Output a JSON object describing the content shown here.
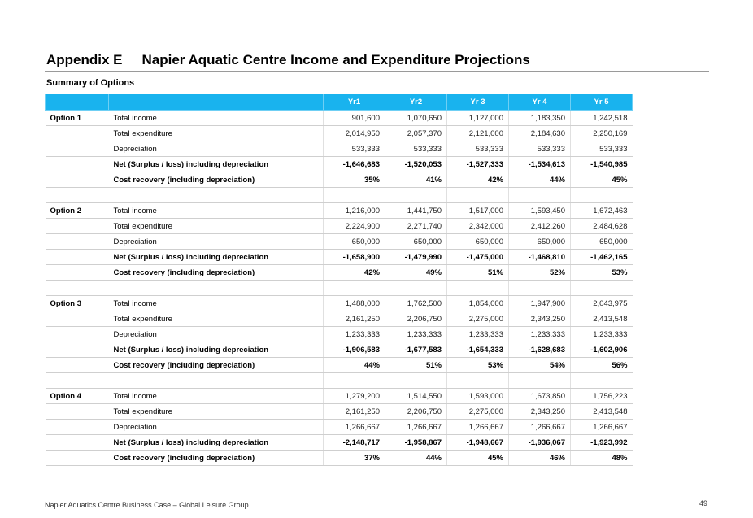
{
  "header": {
    "appendix": "Appendix E",
    "title": "Napier Aquatic Centre Income and Expenditure Projections",
    "subtitle": "Summary of Options"
  },
  "table": {
    "columns": [
      "Yr1",
      "Yr2",
      "Yr 3",
      "Yr 4",
      "Yr 5"
    ],
    "options": [
      {
        "option": "Option 1",
        "rows": [
          {
            "label": "Total income",
            "values": [
              "901,600",
              "1,070,650",
              "1,127,000",
              "1,183,350",
              "1,242,518"
            ]
          },
          {
            "label": "Total expenditure",
            "values": [
              "2,014,950",
              "2,057,370",
              "2,121,000",
              "2,184,630",
              "2,250,169"
            ]
          },
          {
            "label": "Depreciation",
            "values": [
              "533,333",
              "533,333",
              "533,333",
              "533,333",
              "533,333"
            ]
          },
          {
            "label": "Net (Surplus / loss) including depreciation",
            "values": [
              "-1,646,683",
              "-1,520,053",
              "-1,527,333",
              "-1,534,613",
              "-1,540,985"
            ]
          },
          {
            "label": "Cost recovery (including depreciation)",
            "values": [
              "35%",
              "41%",
              "42%",
              "44%",
              "45%"
            ]
          }
        ]
      },
      {
        "option": "Option 2",
        "rows": [
          {
            "label": "Total income",
            "values": [
              "1,216,000",
              "1,441,750",
              "1,517,000",
              "1,593,450",
              "1,672,463"
            ]
          },
          {
            "label": "Total expenditure",
            "values": [
              "2,224,900",
              "2,271,740",
              "2,342,000",
              "2,412,260",
              "2,484,628"
            ]
          },
          {
            "label": "Depreciation",
            "values": [
              "650,000",
              "650,000",
              "650,000",
              "650,000",
              "650,000"
            ]
          },
          {
            "label": "Net (Surplus / loss) including depreciation",
            "values": [
              "-1,658,900",
              "-1,479,990",
              "-1,475,000",
              "-1,468,810",
              "-1,462,165"
            ]
          },
          {
            "label": "Cost recovery (including depreciation)",
            "values": [
              "42%",
              "49%",
              "51%",
              "52%",
              "53%"
            ]
          }
        ]
      },
      {
        "option": "Option 3",
        "rows": [
          {
            "label": "Total income",
            "values": [
              "1,488,000",
              "1,762,500",
              "1,854,000",
              "1,947,900",
              "2,043,975"
            ]
          },
          {
            "label": "Total expenditure",
            "values": [
              "2,161,250",
              "2,206,750",
              "2,275,000",
              "2,343,250",
              "2,413,548"
            ]
          },
          {
            "label": "Depreciation",
            "values": [
              "1,233,333",
              "1,233,333",
              "1,233,333",
              "1,233,333",
              "1,233,333"
            ]
          },
          {
            "label": "Net (Surplus / loss) including depreciation",
            "values": [
              "-1,906,583",
              "-1,677,583",
              "-1,654,333",
              "-1,628,683",
              "-1,602,906"
            ]
          },
          {
            "label": "Cost recovery (including depreciation)",
            "values": [
              "44%",
              "51%",
              "53%",
              "54%",
              "56%"
            ]
          }
        ]
      },
      {
        "option": "Option 4",
        "rows": [
          {
            "label": "Total income",
            "values": [
              "1,279,200",
              "1,514,550",
              "1,593,000",
              "1,673,850",
              "1,756,223"
            ]
          },
          {
            "label": "Total expenditure",
            "values": [
              "2,161,250",
              "2,206,750",
              "2,275,000",
              "2,343,250",
              "2,413,548"
            ]
          },
          {
            "label": "Depreciation",
            "values": [
              "1,266,667",
              "1,266,667",
              "1,266,667",
              "1,266,667",
              "1,266,667"
            ]
          },
          {
            "label": "Net (Surplus / loss) including depreciation",
            "values": [
              "-2,148,717",
              "-1,958,867",
              "-1,948,667",
              "-1,936,067",
              "-1,923,992"
            ]
          },
          {
            "label": "Cost recovery (including depreciation)",
            "values": [
              "37%",
              "44%",
              "45%",
              "46%",
              "48%"
            ]
          }
        ]
      }
    ]
  },
  "footer": {
    "text": "Napier Aquatics Centre Business Case – Global Leisure Group",
    "page_number": "49"
  }
}
